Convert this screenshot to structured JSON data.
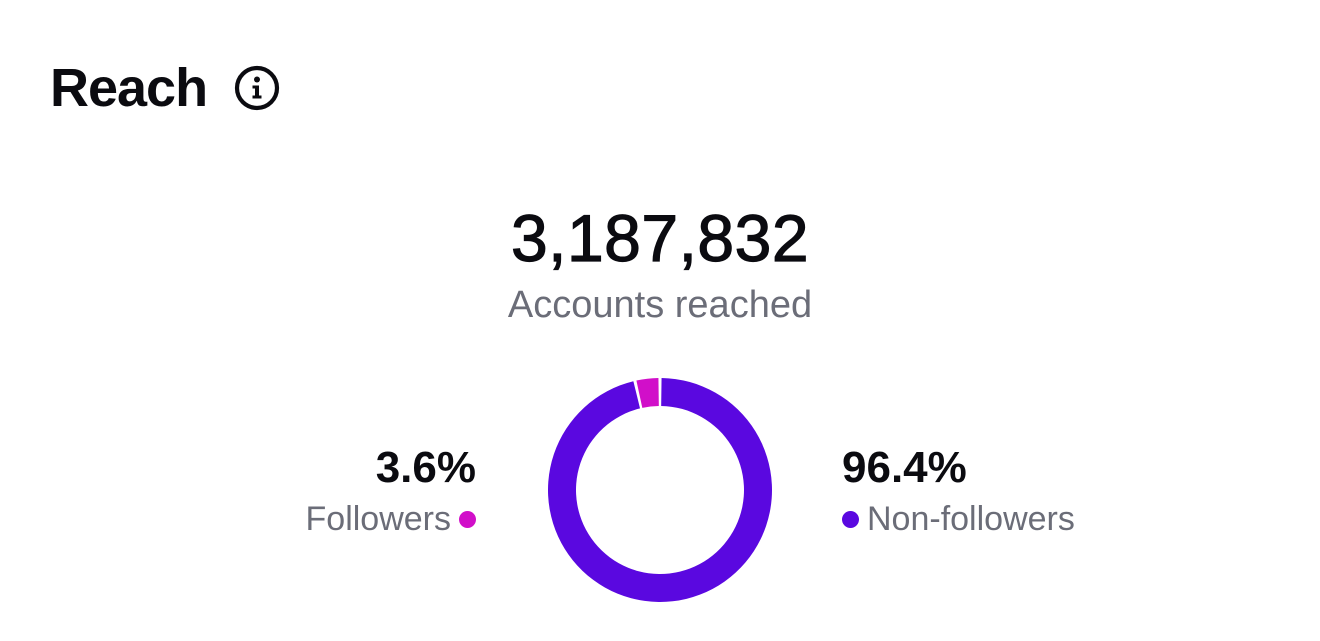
{
  "header": {
    "title": "Reach",
    "info_icon": "info-circle-icon"
  },
  "summary": {
    "total": "3,187,832",
    "label": "Accounts reached"
  },
  "breakdown": {
    "followers": {
      "percent": "3.6%",
      "label": "Followers",
      "color": "#d10fc9"
    },
    "non_followers": {
      "percent": "96.4%",
      "label": "Non-followers",
      "color": "#5a08e0"
    }
  },
  "chart_data": {
    "type": "pie",
    "categories": [
      "Followers",
      "Non-followers"
    ],
    "values": [
      3.6,
      96.4
    ],
    "colors": [
      "#d10fc9",
      "#5a08e0"
    ]
  }
}
